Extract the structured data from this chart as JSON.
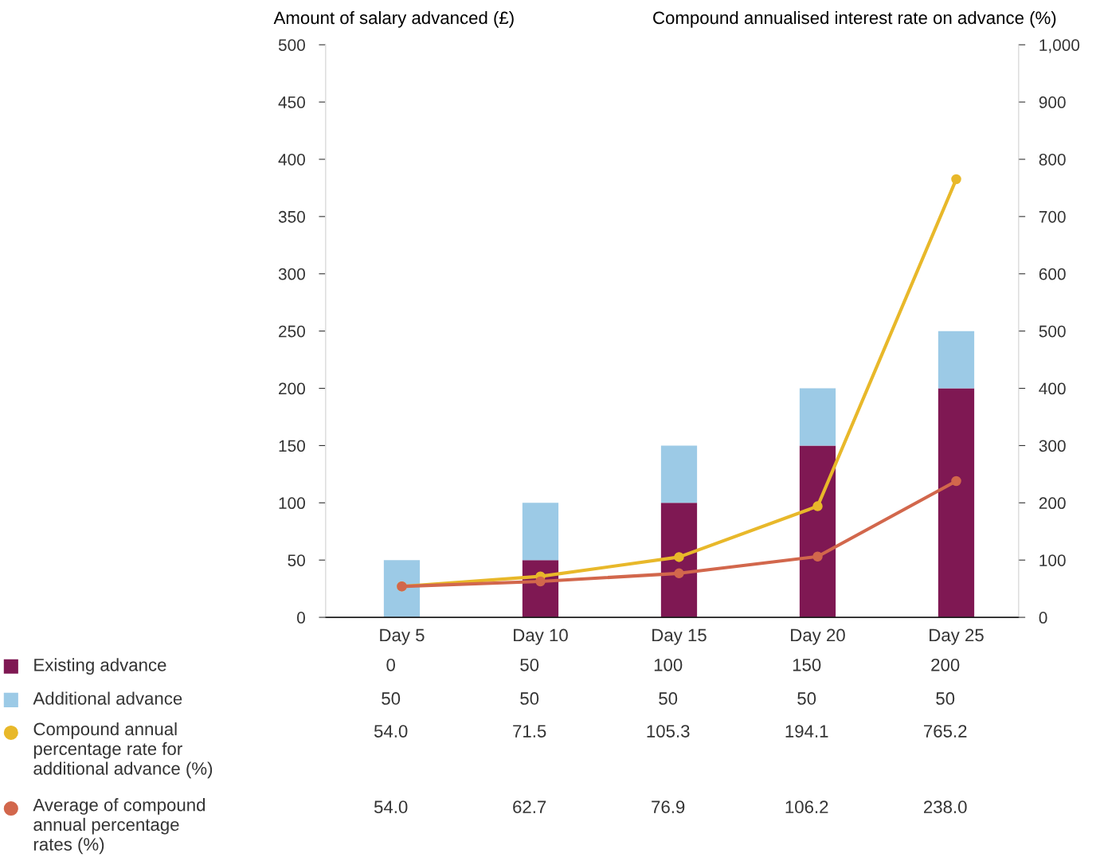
{
  "chart_data": {
    "type": "bar",
    "stacked": true,
    "ylabel": "Amount of salary advanced (£)",
    "y2label": "Compound annualised interest rate on advance (%)",
    "categories": [
      "Day 5",
      "Day 10",
      "Day 15",
      "Day 20",
      "Day 25"
    ],
    "series": [
      {
        "name": "Existing advance",
        "color": "#7f1853",
        "values": [
          0,
          50,
          100,
          150,
          200
        ],
        "value_labels": [
          "0",
          "50",
          "100",
          "150",
          "200"
        ]
      },
      {
        "name": "Additional advance",
        "color": "#9ccae6",
        "values": [
          50,
          50,
          50,
          50,
          50
        ],
        "value_labels": [
          "50",
          "50",
          "50",
          "50",
          "50"
        ]
      },
      {
        "name": "Compound annual\npercentage rate for\nadditional advance (%)",
        "type": "line",
        "axis": "y2",
        "color": "#e8b82a",
        "values": [
          54.0,
          71.5,
          105.3,
          194.1,
          765.2
        ],
        "value_labels": [
          "54.0",
          "71.5",
          "105.3",
          "194.1",
          "765.2"
        ]
      },
      {
        "name": "Average of compound\nannual percentage\nrates (%)",
        "type": "line",
        "axis": "y2",
        "color": "#d2674c",
        "values": [
          54.0,
          62.7,
          76.9,
          106.2,
          238.0
        ],
        "value_labels": [
          "54.0",
          "62.7",
          "76.9",
          "106.2",
          "238.0"
        ]
      }
    ],
    "ylim": [
      0,
      500
    ],
    "yticks": [
      0,
      50,
      100,
      150,
      200,
      250,
      300,
      350,
      400,
      450,
      500
    ],
    "y2lim": [
      0,
      1000
    ],
    "y2ticks": [
      0,
      100,
      200,
      300,
      400,
      500,
      600,
      700,
      800,
      900,
      {
        "value": 1000,
        "label": "1,000"
      }
    ],
    "marker": "circle",
    "legend": "bottom",
    "grid": false
  }
}
